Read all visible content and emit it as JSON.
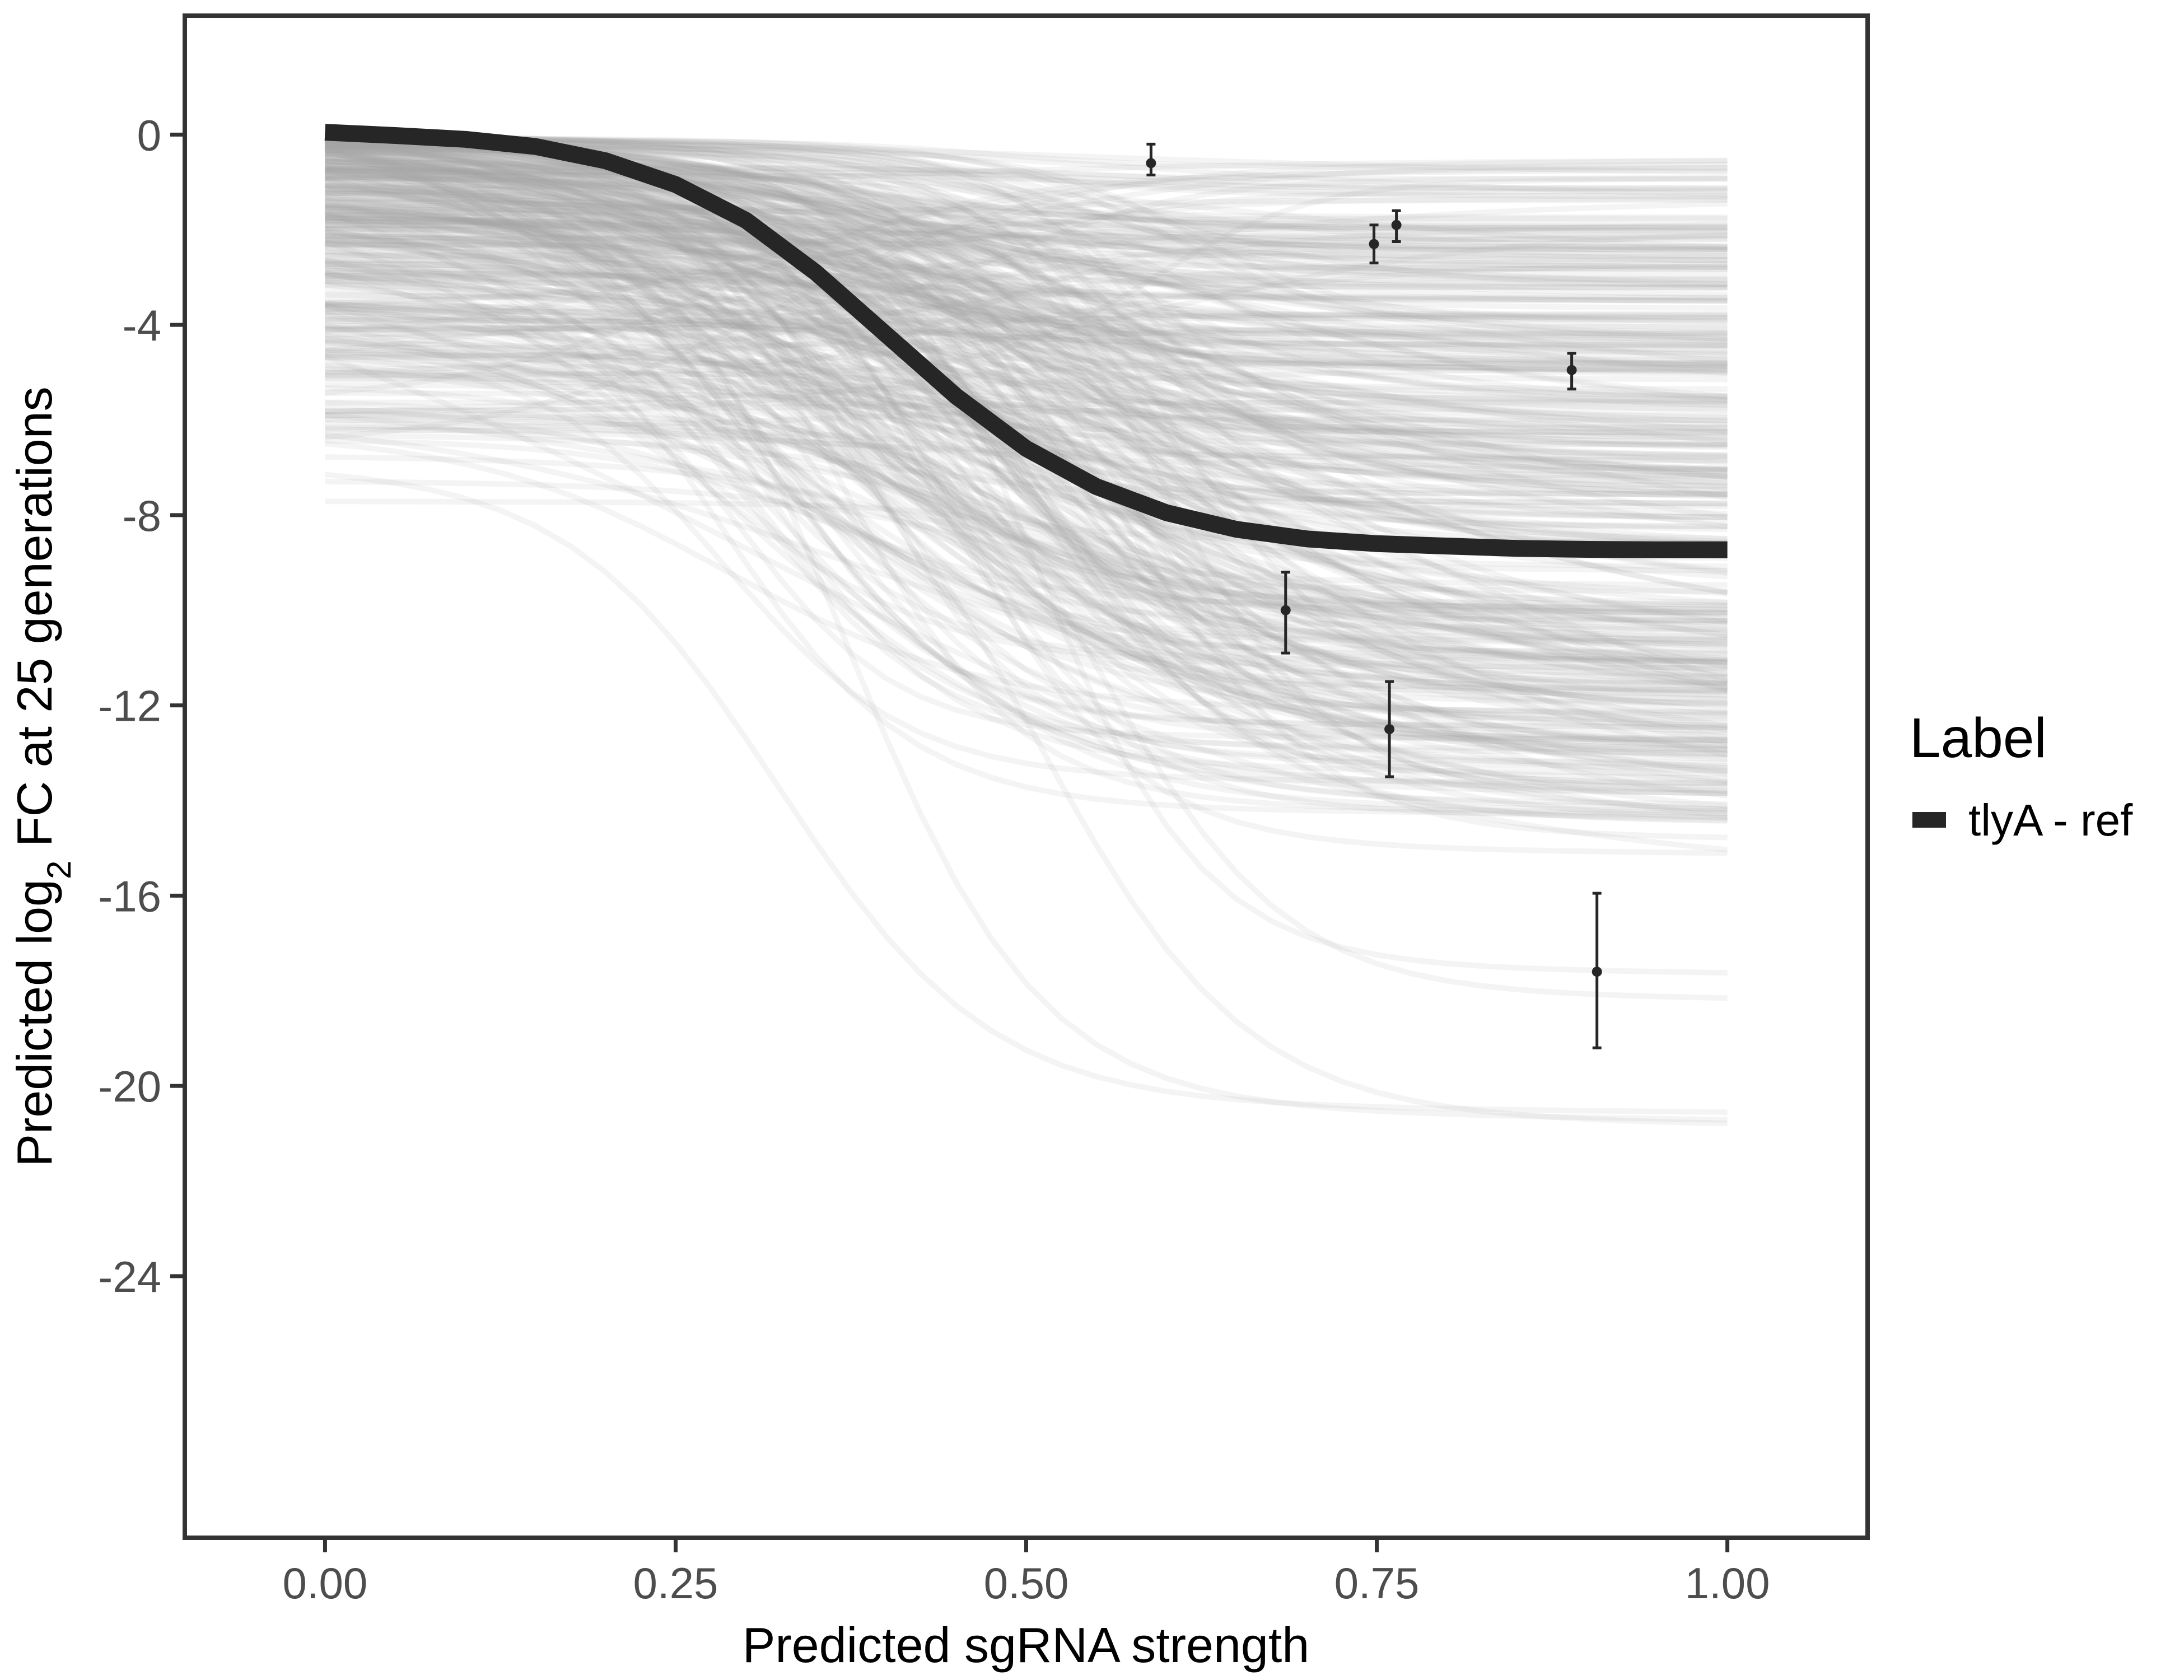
{
  "chart_data": {
    "type": "line",
    "xlabel": "Predicted sgRNA strength",
    "ylabel_prefix": "Predicted  log",
    "ylabel_subscript": "2",
    "ylabel_suffix": " FC at 25 generations",
    "xlim": [
      -0.1,
      1.1
    ],
    "ylim": [
      -29.5,
      2.5
    ],
    "x_ticks": [
      0,
      0.25,
      0.5,
      0.75,
      1
    ],
    "x_tick_labels": [
      "0.00",
      "0.25",
      "0.50",
      "0.75",
      "1.00"
    ],
    "y_ticks": [
      0,
      -4,
      -8,
      -12,
      -16,
      -20,
      -24
    ],
    "y_tick_labels": [
      "0",
      "-4",
      "-8",
      "-12",
      "-16",
      "-20",
      "-24"
    ],
    "grid": false,
    "legend": {
      "title": "Label",
      "position": "right",
      "entries": [
        {
          "label": "tlyA - ref",
          "color": "#262626"
        }
      ]
    },
    "main_curve": {
      "name": "tlyA - ref",
      "color": "#262626",
      "x": [
        0,
        0.05,
        0.1,
        0.15,
        0.2,
        0.25,
        0.3,
        0.35,
        0.4,
        0.45,
        0.5,
        0.55,
        0.6,
        0.65,
        0.7,
        0.75,
        0.8,
        0.85,
        0.9,
        0.95,
        1.0
      ],
      "y": [
        0.05,
        -0.02,
        -0.1,
        -0.25,
        -0.55,
        -1.05,
        -1.8,
        -2.9,
        -4.2,
        -5.5,
        -6.6,
        -7.4,
        -7.95,
        -8.3,
        -8.5,
        -8.6,
        -8.65,
        -8.7,
        -8.72,
        -8.73,
        -8.73
      ]
    },
    "posterior_draws": {
      "color": "#a6a6a6",
      "count": 400
    },
    "observations": {
      "x": [
        0.589,
        0.685,
        0.748,
        0.759,
        0.764,
        0.889,
        0.907
      ],
      "y": [
        -0.6,
        -10.0,
        -2.3,
        -12.5,
        -1.9,
        -4.95,
        -17.6
      ],
      "lower": [
        -0.85,
        -10.9,
        -2.7,
        -13.5,
        -2.25,
        -5.35,
        -19.2
      ],
      "upper": [
        -0.2,
        -9.2,
        -1.9,
        -11.5,
        -1.6,
        -4.6,
        -15.95
      ]
    }
  }
}
